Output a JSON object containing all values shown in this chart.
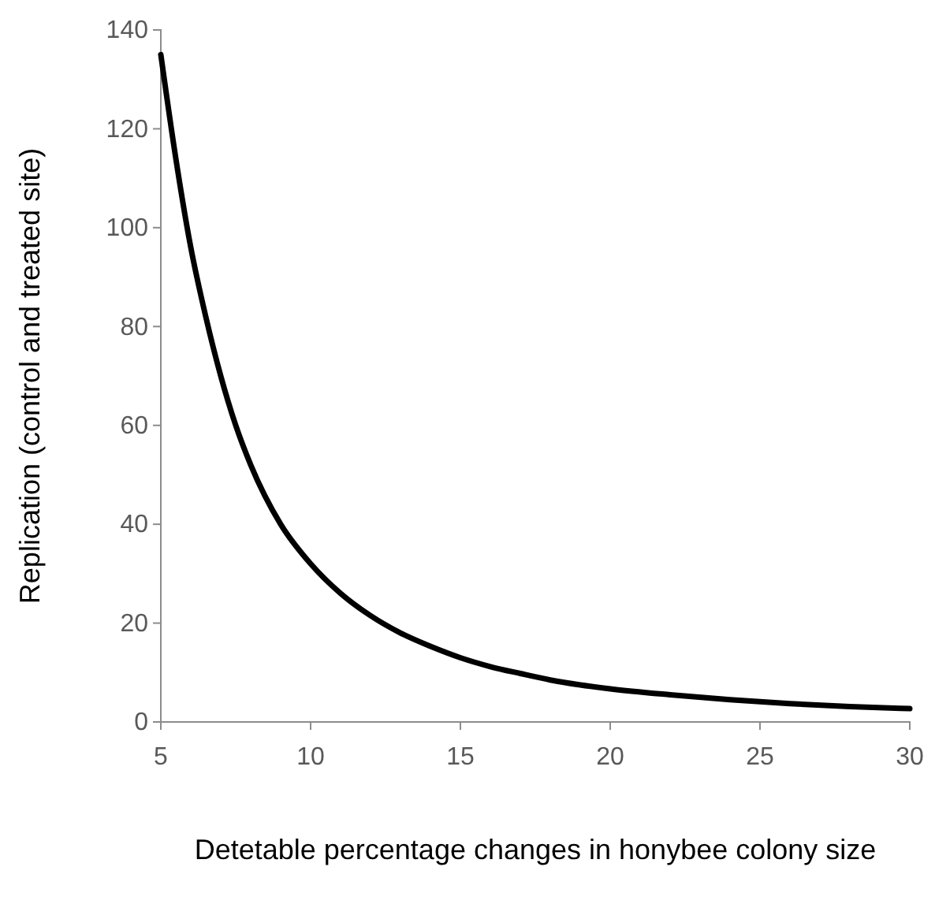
{
  "chart_data": {
    "type": "line",
    "xlabel": "Detetable percentage changes in honybee colony size",
    "ylabel": "Replication (control and treated site)",
    "x": [
      5,
      5.5,
      6,
      6.5,
      7,
      7.5,
      8,
      9,
      10,
      11,
      12,
      13,
      14,
      15,
      16,
      17,
      18,
      19,
      20,
      22,
      24,
      26,
      28,
      30
    ],
    "series": [
      {
        "color": "#000000",
        "values": [
          135,
          114,
          96,
          82,
          70,
          60,
          52,
          40,
          32,
          26,
          21.5,
          18,
          15.3,
          13,
          11.2,
          9.8,
          8.5,
          7.5,
          6.7,
          5.5,
          4.5,
          3.7,
          3.1,
          2.7
        ]
      }
    ],
    "xlim": [
      5,
      30
    ],
    "xticks": [
      5,
      10,
      15,
      20,
      25,
      30
    ],
    "ylim": [
      0,
      140
    ],
    "yticks": [
      0,
      20,
      40,
      60,
      80,
      100,
      120,
      140
    ],
    "grid": false,
    "marker": "none",
    "line_style": "solid"
  }
}
